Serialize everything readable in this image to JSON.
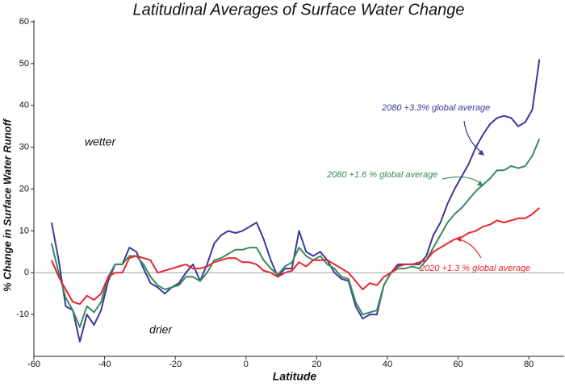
{
  "chart_data": {
    "type": "line",
    "title": "Latitudinal Averages of Surface Water Change",
    "x_label": "Latitude",
    "y_label": "% Change in Surface Water Runoff",
    "annotations": [
      {
        "text": "wetter"
      },
      {
        "text": "drier"
      }
    ],
    "x": [
      -55,
      -53,
      -51,
      -49,
      -47,
      -45,
      -43,
      -41,
      -39,
      -37,
      -35,
      -33,
      -31,
      -29,
      -27,
      -25,
      -23,
      -21,
      -19,
      -17,
      -15,
      -13,
      -11,
      -9,
      -7,
      -5,
      -3,
      -1,
      1,
      3,
      5,
      7,
      9,
      11,
      13,
      15,
      17,
      19,
      21,
      23,
      25,
      27,
      29,
      31,
      33,
      35,
      37,
      39,
      41,
      43,
      45,
      47,
      49,
      51,
      53,
      55,
      57,
      59,
      61,
      63,
      65,
      67,
      69,
      71,
      73,
      75,
      77,
      79,
      81,
      83
    ],
    "series": [
      {
        "name": "2080  +3.3% global average",
        "color": "#3a3a9c",
        "values": [
          12,
          3,
          -8,
          -9,
          -16.5,
          -10,
          -12.5,
          -9,
          -2,
          2,
          2,
          6,
          5,
          1,
          -2.5,
          -3.5,
          -5,
          -3.5,
          -2.5,
          0,
          2,
          -2,
          2,
          7,
          9,
          10,
          9.5,
          10,
          11,
          12,
          8,
          3,
          -1,
          1,
          1,
          10,
          5,
          4,
          5,
          3,
          0,
          -1.5,
          -2,
          -8,
          -11,
          -10,
          -10,
          -3,
          0,
          2,
          2,
          2,
          2,
          4,
          9,
          12,
          16.5,
          20,
          23,
          26,
          30,
          33,
          35.5,
          37,
          37.5,
          37,
          35,
          36,
          39,
          51
        ]
      },
      {
        "name": "2080  +1.6 % global average",
        "color": "#3a8a5a",
        "values": [
          7,
          0,
          -6,
          -9,
          -13,
          -8,
          -9.5,
          -7,
          -1,
          2,
          2,
          4,
          4,
          2,
          -1,
          -3,
          -4,
          -3.5,
          -3,
          -1,
          -1,
          -2,
          0,
          3,
          3.5,
          4.5,
          5.5,
          5.5,
          6,
          6,
          3,
          1,
          -0.5,
          1.5,
          2.5,
          6,
          4,
          3,
          4,
          2,
          1,
          -1,
          -1.5,
          -7,
          -10,
          -9.5,
          -9,
          -3,
          0,
          1,
          1,
          1.5,
          1,
          3,
          6,
          9,
          12,
          14,
          15.5,
          17.5,
          19.5,
          21,
          22.5,
          24.5,
          24.5,
          25.5,
          25,
          25.5,
          28,
          32
        ]
      },
      {
        "name": "2020  +1.3 % global average",
        "color": "#e8262d",
        "values": [
          3,
          -1,
          -4,
          -7,
          -7.5,
          -5.5,
          -6.5,
          -5,
          -1,
          0,
          0,
          3.5,
          4,
          3.5,
          3,
          0,
          0.5,
          1,
          1.5,
          2,
          1,
          1,
          1.5,
          2.5,
          3,
          3.5,
          3.5,
          2.5,
          2.5,
          2,
          0.5,
          0,
          -1,
          0,
          0.5,
          2.5,
          1.5,
          3,
          3,
          3,
          2,
          1,
          0,
          -2,
          -4,
          -2.5,
          -3,
          -1,
          0,
          1.5,
          2,
          2,
          2.5,
          3,
          5,
          6,
          7,
          8,
          8.5,
          9.5,
          10,
          11,
          11.5,
          12.5,
          12,
          12.5,
          13,
          13,
          14,
          15.5
        ]
      }
    ],
    "xlim": [
      -60,
      90
    ],
    "xticks": [
      -60,
      -40,
      -20,
      0,
      20,
      40,
      60,
      80
    ],
    "ylim": [
      -20,
      60
    ],
    "yticks": [
      -10,
      0,
      10,
      20,
      30,
      40,
      50,
      60
    ],
    "zero_line": true
  }
}
